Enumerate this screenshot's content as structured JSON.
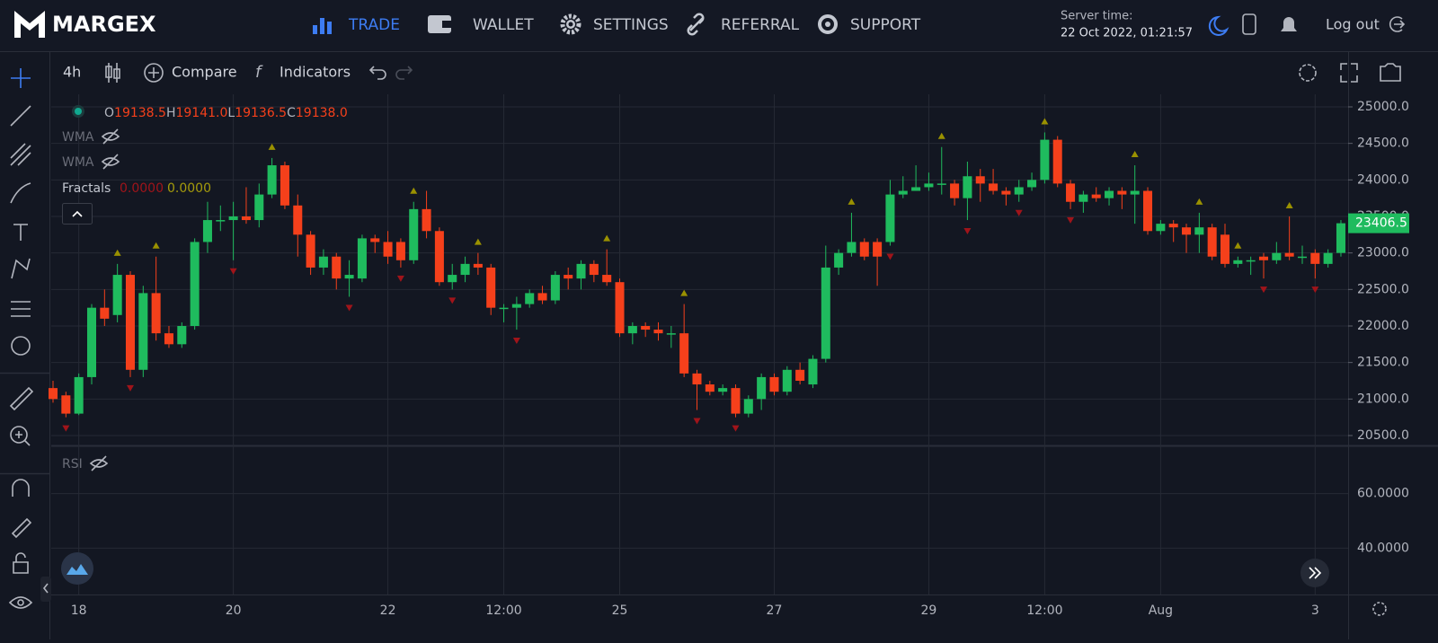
{
  "nav": {
    "brand": "MARGEX",
    "items": [
      "TRADE",
      "WALLET",
      "SETTINGS",
      "REFERRAL",
      "SUPPORT"
    ],
    "server_label": "Server time:",
    "server_time": "22 Oct 2022, 01:21:57",
    "logout": "Log out"
  },
  "toolbar": {
    "interval": "4h",
    "compare": "Compare",
    "indicators": "Indicators"
  },
  "legend": {
    "ohlc": [
      {
        "label": "O",
        "value": "19138.5"
      },
      {
        "label": "H",
        "value": "19141.0"
      },
      {
        "label": "L",
        "value": "19136.5"
      },
      {
        "label": "C",
        "value": "19138.0"
      }
    ],
    "wma": [
      "WMA",
      "WMA"
    ],
    "fractals": {
      "name": "Fractals",
      "values": [
        "0.0000",
        "0.0000"
      ]
    },
    "rsi": "RSI"
  },
  "chart_data": {
    "type": "candlestick",
    "up_color": "#1fbb5e",
    "down_color": "#f5401b",
    "fractal_up_color": "#9a9100",
    "fractal_down_color": "#a0141a",
    "xlim": [
      -0.14,
      100.56
    ],
    "xticks": [
      {
        "value": 2,
        "label": "18"
      },
      {
        "value": 14,
        "label": "20"
      },
      {
        "value": 26,
        "label": "22"
      },
      {
        "value": 35,
        "label": "12:00"
      },
      {
        "value": 44,
        "label": "25"
      },
      {
        "value": 56,
        "label": "27"
      },
      {
        "value": 68,
        "label": "29"
      },
      {
        "value": 77,
        "label": "12:00"
      },
      {
        "value": 86,
        "label": "Aug"
      },
      {
        "value": 98,
        "label": "3"
      }
    ],
    "ylim": [
      20377,
      25172
    ],
    "yticks": [
      {
        "value": 20500,
        "label": "20500.0"
      },
      {
        "value": 21000,
        "label": "21000.0"
      },
      {
        "value": 21500,
        "label": "21500.0"
      },
      {
        "value": 22000,
        "label": "22000.0"
      },
      {
        "value": 22500,
        "label": "22500.0"
      },
      {
        "value": 23000,
        "label": "23000.0"
      },
      {
        "value": 23500,
        "label": "23500.0"
      },
      {
        "value": 24000,
        "label": "24000.0"
      },
      {
        "value": 24500,
        "label": "24500.0"
      },
      {
        "value": 25000,
        "label": "25000.0"
      }
    ],
    "open": [
      21150,
      21050,
      20800,
      21300,
      22250,
      22150,
      22700,
      21400,
      22450,
      21900,
      21750,
      22000,
      23150,
      23450,
      23450,
      23500,
      23450,
      23800,
      24200,
      23650,
      23250,
      22800,
      22950,
      22650,
      22650,
      23200,
      23150,
      23150,
      22900,
      23600,
      23300,
      22600,
      22700,
      22850,
      22800,
      22250,
      22250,
      22300,
      22450,
      22350,
      22700,
      22650,
      22850,
      22700,
      22600,
      21900,
      22000,
      21950,
      21900,
      21900,
      21350,
      21200,
      21100,
      21150,
      20800,
      21000,
      21300,
      21100,
      21400,
      21200,
      21550,
      22800,
      23000,
      23150,
      23150,
      23150,
      23800,
      23850,
      23900,
      23950,
      23950,
      23750,
      24050,
      23950,
      23850,
      23800,
      23900,
      24000,
      24550,
      23950,
      23700,
      23800,
      23750,
      23850,
      23800,
      23850,
      23300,
      23400,
      23350,
      23250,
      23350,
      23250,
      22850,
      22900,
      22950,
      22900,
      23000,
      22950,
      23000,
      22850,
      23000
    ],
    "high": [
      21250,
      21100,
      21350,
      22300,
      22500,
      22850,
      22750,
      22550,
      22950,
      22000,
      22050,
      23200,
      23700,
      23650,
      23700,
      23900,
      23950,
      24300,
      24250,
      23800,
      23300,
      23050,
      23000,
      22900,
      23250,
      23250,
      23300,
      23200,
      23700,
      23850,
      23350,
      22850,
      22950,
      23000,
      22850,
      22300,
      22400,
      22500,
      22550,
      22750,
      22800,
      22900,
      22900,
      23050,
      22650,
      22050,
      22050,
      22050,
      22000,
      22300,
      21400,
      21250,
      21200,
      21200,
      21050,
      21350,
      21350,
      21450,
      21500,
      21600,
      23100,
      23050,
      23550,
      23200,
      23200,
      24000,
      24050,
      24200,
      24100,
      24450,
      24000,
      24250,
      24150,
      24150,
      23900,
      24000,
      24100,
      24650,
      24600,
      24000,
      23850,
      23900,
      23900,
      23900,
      24200,
      23900,
      23450,
      23450,
      23400,
      23550,
      23400,
      23400,
      22950,
      22950,
      23000,
      23150,
      23500,
      23100,
      23050,
      23050,
      23450
    ],
    "low": [
      20950,
      20750,
      20780,
      21200,
      22000,
      22050,
      21300,
      21300,
      21800,
      21700,
      21700,
      21950,
      23000,
      23300,
      22900,
      23400,
      23350,
      23750,
      23600,
      22950,
      22700,
      22700,
      22500,
      22400,
      22600,
      23000,
      22850,
      22800,
      22850,
      23200,
      22550,
      22500,
      22600,
      22700,
      22150,
      22050,
      21950,
      22250,
      22300,
      22300,
      22500,
      22500,
      22600,
      22550,
      21850,
      21750,
      21850,
      21800,
      21700,
      21300,
      20850,
      21050,
      21050,
      20750,
      20750,
      20850,
      21050,
      21050,
      21200,
      21150,
      21500,
      22700,
      22950,
      22900,
      22550,
      23100,
      23750,
      23850,
      23850,
      23800,
      23650,
      23450,
      23700,
      23800,
      23650,
      23700,
      23850,
      23950,
      23900,
      23600,
      23550,
      23700,
      23650,
      23600,
      23400,
      23250,
      23250,
      23150,
      23000,
      23000,
      22900,
      22800,
      22800,
      22700,
      22650,
      22850,
      22900,
      22850,
      22650,
      22800,
      22950
    ],
    "close": [
      21000,
      20800,
      21300,
      22250,
      22100,
      22700,
      21400,
      22450,
      21900,
      21750,
      22000,
      23150,
      23450,
      23450,
      23500,
      23450,
      23800,
      24200,
      23650,
      23250,
      22800,
      22950,
      22650,
      22700,
      23200,
      23150,
      22950,
      22900,
      23600,
      23300,
      22600,
      22700,
      22850,
      22800,
      22250,
      22250,
      22300,
      22450,
      22350,
      22700,
      22650,
      22850,
      22700,
      22600,
      21900,
      22000,
      21950,
      21900,
      21900,
      21350,
      21200,
      21100,
      21150,
      20800,
      21000,
      21300,
      21100,
      21400,
      21250,
      21550,
      22800,
      23000,
      23150,
      22950,
      22950,
      23800,
      23850,
      23900,
      23950,
      23950,
      23750,
      24050,
      23950,
      23850,
      23800,
      23900,
      24000,
      24550,
      23950,
      23700,
      23800,
      23750,
      23850,
      23800,
      23850,
      23300,
      23400,
      23350,
      23250,
      23350,
      22950,
      22850,
      22900,
      22900,
      22900,
      23000,
      22950,
      22950,
      22850,
      23000,
      23406.5
    ],
    "fractals_up": [
      5,
      8,
      17,
      28,
      33,
      43,
      49,
      62,
      69,
      77,
      84,
      89,
      92,
      96
    ],
    "fractals_down": [
      1,
      6,
      14,
      23,
      27,
      31,
      36,
      50,
      53,
      65,
      71,
      75,
      79,
      94,
      98
    ],
    "rsi_ylim": [
      23,
      77.3
    ],
    "rsi_yticks": [
      {
        "value": 40,
        "label": "40.0000"
      },
      {
        "value": 60,
        "label": "60.0000"
      }
    ]
  }
}
